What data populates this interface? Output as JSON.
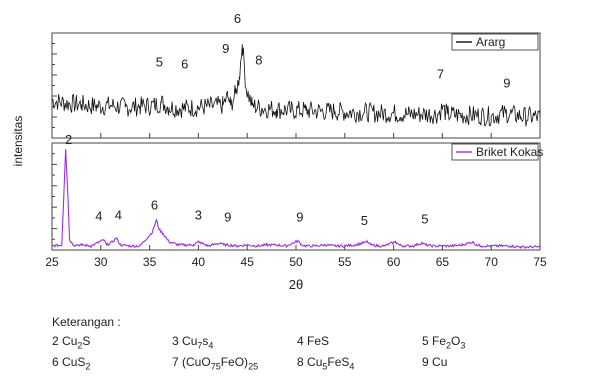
{
  "chart_data": {
    "type": "line",
    "xlabel": "2θ",
    "ylabel": "intensitas",
    "x_ticks": [
      25,
      30,
      35,
      40,
      45,
      50,
      55,
      60,
      65,
      70,
      75
    ],
    "xlim": [
      25,
      75
    ],
    "series": [
      {
        "name": "Ararg",
        "color": "#111111",
        "x": [
          25,
          26.5,
          28,
          29.5,
          31,
          32.5,
          34,
          35.5,
          36.2,
          37,
          38.5,
          40,
          41.5,
          42.5,
          43.0,
          43.3,
          43.8,
          44.2,
          44.5,
          44.9,
          45.5,
          46.5,
          48,
          49.5,
          51,
          52.5,
          54,
          55.5,
          57,
          58.5,
          60,
          61.5,
          63,
          64.5,
          65.0,
          65.5,
          67,
          68.5,
          70,
          71.5,
          73,
          75
        ],
        "y": [
          0.38,
          0.35,
          0.34,
          0.32,
          0.33,
          0.31,
          0.32,
          0.33,
          0.36,
          0.31,
          0.3,
          0.31,
          0.32,
          0.33,
          0.42,
          0.33,
          0.45,
          0.62,
          0.95,
          0.5,
          0.33,
          0.3,
          0.29,
          0.28,
          0.28,
          0.27,
          0.27,
          0.26,
          0.26,
          0.25,
          0.25,
          0.24,
          0.24,
          0.24,
          0.3,
          0.24,
          0.23,
          0.23,
          0.22,
          0.25,
          0.22,
          0.21
        ],
        "noise": 0.1,
        "peak_labels": [
          {
            "label": "5",
            "x": 36.0,
            "y": 0.72
          },
          {
            "label": "6",
            "x": 38.6,
            "y": 0.7
          },
          {
            "label": "9",
            "x": 42.8,
            "y": 0.86
          },
          {
            "label": "6",
            "x": 44.0,
            "y": 1.16
          },
          {
            "label": "8",
            "x": 46.2,
            "y": 0.74
          },
          {
            "label": "7",
            "x": 64.8,
            "y": 0.6
          },
          {
            "label": "9",
            "x": 71.6,
            "y": 0.51
          }
        ]
      },
      {
        "name": "Briket Kokas",
        "color": "#9b30e0",
        "x": [
          25,
          26.0,
          26.4,
          26.6,
          26.8,
          27.2,
          28,
          29,
          30.3,
          30.6,
          31.2,
          31.6,
          32,
          33,
          34,
          35.3,
          35.7,
          36.0,
          36.4,
          37,
          38,
          39.5,
          40,
          41,
          42.3,
          42.6,
          43,
          44,
          45,
          46,
          47,
          48,
          49,
          50.2,
          50.6,
          51,
          52,
          53,
          54,
          55,
          56,
          57.3,
          57.7,
          58.5,
          59,
          60.2,
          60.6,
          61,
          62,
          62.9,
          63.3,
          64,
          65,
          66,
          67,
          68.1,
          68.5,
          69,
          70,
          71,
          72,
          73,
          75
        ],
        "y": [
          0.04,
          0.05,
          1.0,
          0.6,
          0.1,
          0.05,
          0.05,
          0.04,
          0.1,
          0.05,
          0.08,
          0.12,
          0.05,
          0.04,
          0.04,
          0.18,
          0.3,
          0.2,
          0.16,
          0.08,
          0.05,
          0.05,
          0.08,
          0.04,
          0.07,
          0.05,
          0.05,
          0.04,
          0.05,
          0.04,
          0.05,
          0.05,
          0.04,
          0.09,
          0.05,
          0.04,
          0.04,
          0.05,
          0.04,
          0.04,
          0.05,
          0.08,
          0.05,
          0.04,
          0.04,
          0.08,
          0.05,
          0.04,
          0.04,
          0.07,
          0.05,
          0.04,
          0.04,
          0.04,
          0.05,
          0.08,
          0.05,
          0.04,
          0.04,
          0.04,
          0.04,
          0.03,
          0.03
        ],
        "noise": 0.012,
        "peak_labels": [
          {
            "label": "2",
            "x": 26.7,
            "y": 1.05
          },
          {
            "label": "4",
            "x": 29.8,
            "y": 0.29
          },
          {
            "label": "4",
            "x": 31.8,
            "y": 0.3
          },
          {
            "label": "6",
            "x": 35.5,
            "y": 0.4
          },
          {
            "label": "3",
            "x": 40.0,
            "y": 0.3
          },
          {
            "label": "9",
            "x": 43.0,
            "y": 0.28
          },
          {
            "label": "9",
            "x": 50.4,
            "y": 0.28
          },
          {
            "label": "5",
            "x": 57.0,
            "y": 0.25
          },
          {
            "label": "5",
            "x": 63.2,
            "y": 0.26
          }
        ]
      }
    ],
    "grid": false,
    "legend": "top-right"
  },
  "keterangan": {
    "title": "Keterangan :",
    "items": [
      {
        "no": "2",
        "parts": [
          {
            "t": " Cu"
          },
          {
            "t": "2",
            "sub": true
          },
          {
            "t": "S"
          }
        ]
      },
      {
        "no": "3",
        "parts": [
          {
            "t": " Cu"
          },
          {
            "t": "7",
            "sub": true
          },
          {
            "t": "s"
          },
          {
            "t": "4",
            "sub": true
          }
        ]
      },
      {
        "no": "4",
        "parts": [
          {
            "t": " FeS"
          }
        ]
      },
      {
        "no": "5",
        "parts": [
          {
            "t": " Fe"
          },
          {
            "t": "2",
            "sub": true
          },
          {
            "t": "O"
          },
          {
            "t": "3",
            "sub": true
          }
        ]
      },
      {
        "no": "6",
        "parts": [
          {
            "t": " CuS"
          },
          {
            "t": "2",
            "sub": true
          }
        ]
      },
      {
        "no": "7",
        "parts": [
          {
            "t": " (CuO"
          },
          {
            "t": "75",
            "sub": true
          },
          {
            "t": "FeO)"
          },
          {
            "t": "25",
            "sub": true
          }
        ]
      },
      {
        "no": "8",
        "parts": [
          {
            "t": " Cu"
          },
          {
            "t": "5",
            "sub": true
          },
          {
            "t": "FeS"
          },
          {
            "t": "4",
            "sub": true
          }
        ]
      },
      {
        "no": "9",
        "parts": [
          {
            "t": " Cu"
          }
        ]
      }
    ]
  }
}
